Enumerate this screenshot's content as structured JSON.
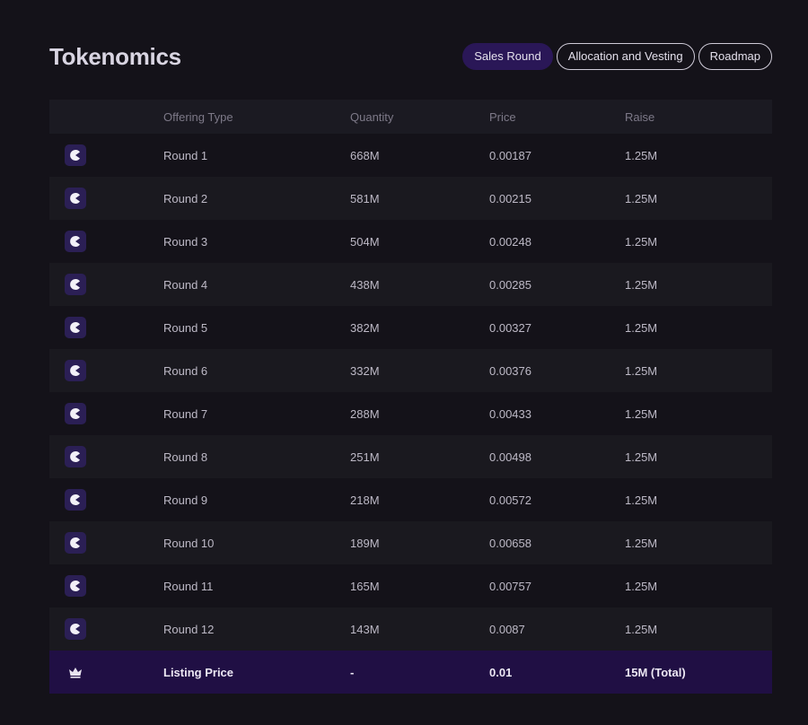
{
  "header": {
    "title": "Tokenomics",
    "tabs": [
      "Sales Round",
      "Allocation and Vesting",
      "Roadmap"
    ],
    "active_tab": 0
  },
  "table": {
    "columns": [
      "Offering Type",
      "Quantity",
      "Price",
      "Raise"
    ],
    "rows": [
      [
        "Round 1",
        "668M",
        "0.00187",
        "1.25M"
      ],
      [
        "Round 2",
        "581M",
        "0.00215",
        "1.25M"
      ],
      [
        "Round 3",
        "504M",
        "0.00248",
        "1.25M"
      ],
      [
        "Round 4",
        "438M",
        "0.00285",
        "1.25M"
      ],
      [
        "Round 5",
        "382M",
        "0.00327",
        "1.25M"
      ],
      [
        "Round 6",
        "332M",
        "0.00376",
        "1.25M"
      ],
      [
        "Round 7",
        "288M",
        "0.00433",
        "1.25M"
      ],
      [
        "Round 8",
        "251M",
        "0.00498",
        "1.25M"
      ],
      [
        "Round 9",
        "218M",
        "0.00572",
        "1.25M"
      ],
      [
        "Round 10",
        "189M",
        "0.00658",
        "1.25M"
      ],
      [
        "Round 11",
        "165M",
        "0.00757",
        "1.25M"
      ],
      [
        "Round 12",
        "143M",
        "0.0087",
        "1.25M"
      ]
    ],
    "footer": [
      "Listing Price",
      "-",
      "0.01",
      "15M (Total)"
    ]
  }
}
